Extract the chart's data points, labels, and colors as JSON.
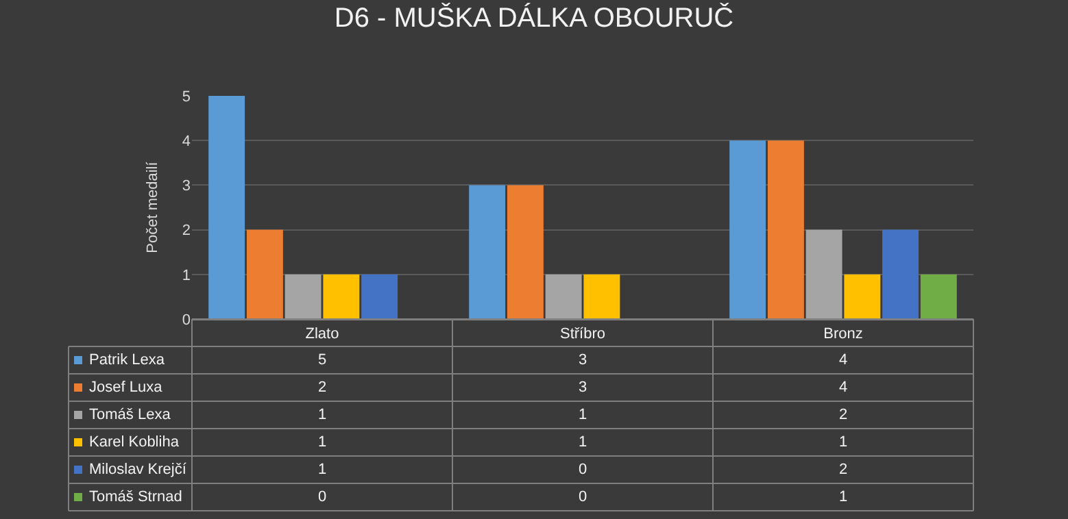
{
  "chart_data": {
    "type": "bar",
    "title": "D6 - MUŠKA DÁLKA OBOURUČ",
    "ylabel": "Počet medailí",
    "categories": [
      "Zlato",
      "Stříbro",
      "Bronz"
    ],
    "series": [
      {
        "name": "Patrik Lexa",
        "color": "#5b9bd5",
        "values": [
          5,
          3,
          4
        ]
      },
      {
        "name": "Josef Luxa",
        "color": "#ed7d31",
        "values": [
          2,
          3,
          4
        ]
      },
      {
        "name": "Tomáš Lexa",
        "color": "#a5a5a5",
        "values": [
          1,
          1,
          2
        ]
      },
      {
        "name": "Karel Kobliha",
        "color": "#ffc000",
        "values": [
          1,
          1,
          1
        ]
      },
      {
        "name": "Miloslav Krejčí",
        "color": "#4472c4",
        "values": [
          1,
          0,
          2
        ]
      },
      {
        "name": "Tomáš Strnad",
        "color": "#70ad47",
        "values": [
          0,
          0,
          1
        ]
      }
    ],
    "ylim": [
      0,
      5
    ],
    "yticks": [
      0,
      1,
      2,
      3,
      4,
      5
    ],
    "grid": "y",
    "legend": "bottom",
    "data_labels": true
  }
}
